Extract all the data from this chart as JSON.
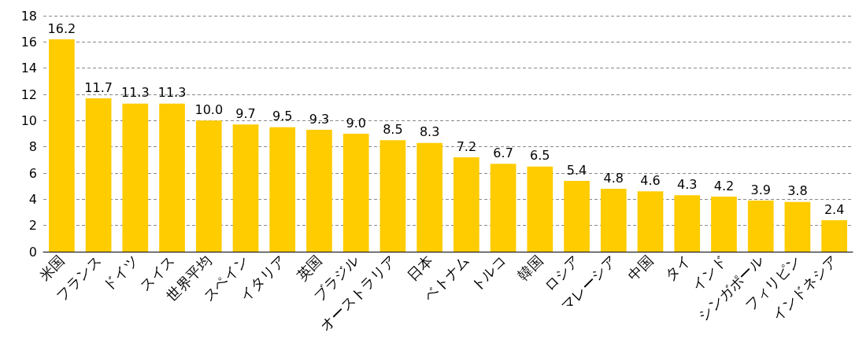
{
  "chart_data": {
    "type": "bar",
    "categories": [
      "米国",
      "フランス",
      "ドイツ",
      "スイス",
      "世界平均",
      "スペイン",
      "イタリア",
      "英国",
      "ブラジル",
      "オーストラリア",
      "日本",
      "ベトナム",
      "トルコ",
      "韓国",
      "ロシア",
      "マレーシア",
      "中国",
      "タイ",
      "インド",
      "シンガポール",
      "フィリピン",
      "インドネシア"
    ],
    "values": [
      16.2,
      11.7,
      11.3,
      11.3,
      10.0,
      9.7,
      9.5,
      9.3,
      9.0,
      8.5,
      8.3,
      7.2,
      6.7,
      6.5,
      5.4,
      4.8,
      4.6,
      4.3,
      4.2,
      3.9,
      3.8,
      2.4
    ],
    "value_labels": [
      "16.2",
      "11.7",
      "11.3",
      "11.3",
      "10.0",
      "9.7",
      "9.5",
      "9.3",
      "9.0",
      "8.5",
      "8.3",
      "7.2",
      "6.7",
      "6.5",
      "5.4",
      "4.8",
      "4.6",
      "4.3",
      "4.2",
      "3.9",
      "3.8",
      "2.4"
    ],
    "color": "#ffcc00",
    "ylim": [
      0,
      18
    ],
    "yticks": [
      0,
      2,
      4,
      6,
      8,
      10,
      12,
      14,
      16,
      18
    ],
    "grid": "y"
  }
}
